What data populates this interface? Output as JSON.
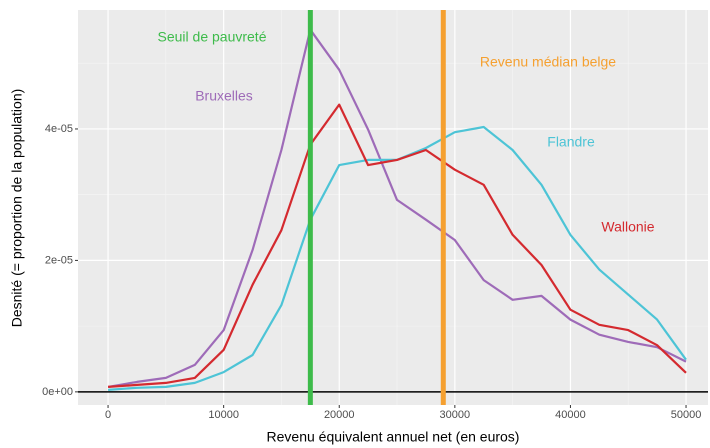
{
  "chart_data": {
    "type": "line",
    "x_label": "Revenu équivalent annuel net (en euros)",
    "y_label": "Desnité (= proportion de la population)",
    "x": [
      0,
      2500,
      5000,
      7500,
      10000,
      12500,
      15000,
      17500,
      20000,
      22500,
      25000,
      27500,
      30000,
      32500,
      35000,
      37500,
      40000,
      42500,
      45000,
      47500,
      50000
    ],
    "series": [
      {
        "name": "Bruxelles",
        "color": "#9e6bb8",
        "values": [
          7.6e-07,
          1.52e-06,
          2.13e-06,
          4.1e-06,
          9.4e-06,
          2.16e-05,
          3.68e-05,
          5.51e-05,
          4.9e-05,
          3.99e-05,
          2.92e-05,
          2.62e-05,
          2.31e-05,
          1.7e-05,
          1.4e-05,
          1.46e-05,
          1.1e-05,
          8.7e-06,
          7.6e-06,
          6.8e-06,
          4.6e-06
        ]
      },
      {
        "name": "Flandre",
        "color": "#4dc4d6",
        "values": [
          3e-07,
          6.1e-07,
          7.6e-07,
          1.37e-06,
          3e-06,
          5.6e-06,
          1.32e-05,
          2.62e-05,
          3.45e-05,
          3.53e-05,
          3.53e-05,
          3.71e-05,
          3.95e-05,
          4.03e-05,
          3.68e-05,
          3.15e-05,
          2.39e-05,
          1.86e-05,
          1.48e-05,
          1.1e-05,
          4.9e-06
        ]
      },
      {
        "name": "Wallonie",
        "color": "#d42a2f",
        "values": [
          7.6e-07,
          1.06e-06,
          1.37e-06,
          2.13e-06,
          6.4e-06,
          1.63e-05,
          2.46e-05,
          3.76e-05,
          4.37e-05,
          3.45e-05,
          3.53e-05,
          3.68e-05,
          3.38e-05,
          3.15e-05,
          2.39e-05,
          1.93e-05,
          1.25e-05,
          1.02e-05,
          9.4e-06,
          7.1e-06,
          2.9e-06
        ]
      }
    ],
    "vlines": [
      {
        "label": "Seuil de pauvreté",
        "x": 17500,
        "color": "#3dbb4a"
      },
      {
        "label": "Revenu médian belge",
        "x": 29000,
        "color": "#f5a030"
      }
    ],
    "hline": 0,
    "xlim": [
      -2600,
      51900
    ],
    "ylim": [
      -2e-06,
      5.81e-05
    ],
    "xticks": [
      0,
      10000,
      20000,
      30000,
      40000,
      50000
    ],
    "yticks": [
      {
        "value": 0,
        "label": "0e+00"
      },
      {
        "value": 2e-05,
        "label": "2e-05"
      },
      {
        "value": 4e-05,
        "label": "4e-05"
      }
    ],
    "grid": true
  }
}
